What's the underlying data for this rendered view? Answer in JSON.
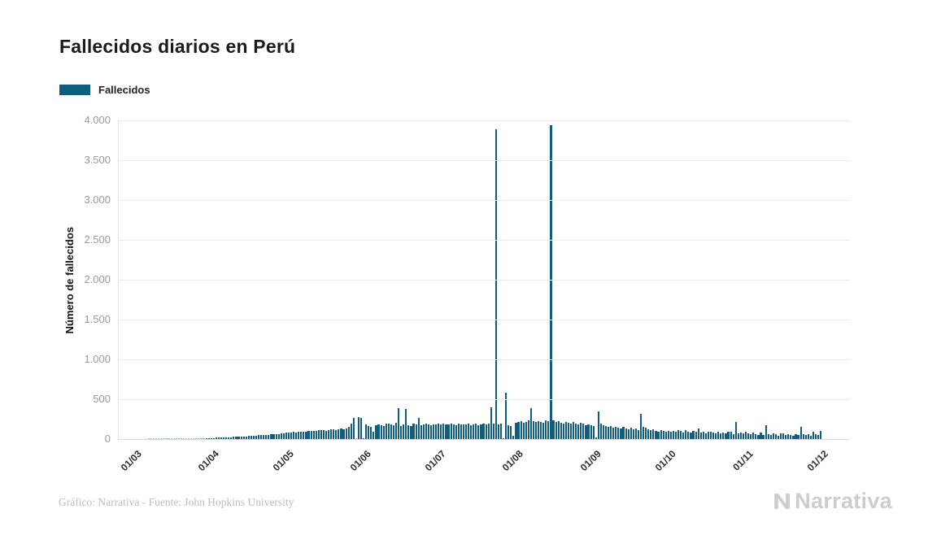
{
  "page": {
    "title": "Fallecidos diarios en Perú",
    "footer_credit": "Gráfico: Narrativa - Fuente: John Hopkins University",
    "brand": "Narrativa"
  },
  "legend": {
    "label": "Fallecidos"
  },
  "colors": {
    "bar": "#115d7e",
    "grid": "#ebebeb",
    "axis_tick_text": "#9b9b9b",
    "title_text": "#1b1b1b",
    "footer_text": "#bdbdbd",
    "brand_text": "#cdcdcd"
  },
  "chart_data": {
    "type": "bar",
    "title": "Fallecidos diarios en Perú",
    "xlabel": "",
    "ylabel": "Número de fallecidos",
    "ylim": [
      0,
      4000
    ],
    "ytick_step": 500,
    "ytick_labels": [
      "0",
      "500",
      "1.000",
      "1.500",
      "2.000",
      "2.500",
      "3.000",
      "3.500",
      "4.000"
    ],
    "grid": "horizontal",
    "legend_position": "top-left",
    "legend_entries": [
      "Fallecidos"
    ],
    "x_tick_labels": [
      "01/03",
      "01/04",
      "01/05",
      "01/06",
      "01/07",
      "01/08",
      "01/09",
      "01/10",
      "01/11",
      "01/12"
    ],
    "x_tick_day_offsets": [
      0,
      31,
      61,
      92,
      122,
      153,
      184,
      214,
      245,
      275
    ],
    "x_domain_days": 293,
    "x_domain_start_offset": 7,
    "notable_points": [
      {
        "x_label": "23/07",
        "value": 3887
      },
      {
        "x_label": "14/08",
        "value": 3935
      }
    ],
    "series": [
      {
        "name": "Fallecidos",
        "values": [
          0,
          0,
          0,
          0,
          0,
          1,
          1,
          1,
          1,
          1,
          1,
          1,
          1,
          1,
          2,
          2,
          2,
          2,
          2,
          3,
          4,
          5,
          5,
          7,
          8,
          9,
          9,
          10,
          11,
          12,
          14,
          15,
          16,
          17,
          18,
          20,
          22,
          24,
          25,
          27,
          28,
          30,
          32,
          33,
          35,
          37,
          40,
          42,
          44,
          46,
          48,
          50,
          53,
          56,
          58,
          60,
          63,
          66,
          70,
          74,
          78,
          82,
          85,
          88,
          84,
          90,
          94,
          96,
          92,
          98,
          102,
          105,
          100,
          108,
          112,
          110,
          106,
          115,
          118,
          121,
          116,
          124,
          128,
          125,
          131,
          150,
          190,
          265,
          10,
          275,
          270,
          15,
          180,
          160,
          150,
          90,
          170,
          185,
          175,
          165,
          190,
          195,
          180,
          170,
          200,
          390,
          160,
          185,
          380,
          175,
          165,
          195,
          185,
          270,
          175,
          180,
          190,
          185,
          175,
          180,
          185,
          190,
          185,
          190,
          180,
          188,
          195,
          182,
          178,
          192,
          186,
          180,
          188,
          194,
          176,
          184,
          190,
          178,
          186,
          192,
          183,
          189,
          395,
          190,
          3887,
          185,
          195,
          15,
          585,
          175,
          165,
          40,
          205,
          210,
          225,
          205,
          215,
          230,
          390,
          220,
          210,
          225,
          215,
          205,
          235,
          220,
          3935,
          230,
          215,
          225,
          205,
          195,
          215,
          200,
          190,
          210,
          195,
          185,
          200,
          190,
          175,
          185,
          170,
          160,
          20,
          345,
          190,
          175,
          160,
          150,
          165,
          145,
          155,
          140,
          130,
          150,
          135,
          125,
          140,
          120,
          130,
          115,
          320,
          150,
          140,
          125,
          110,
          120,
          105,
          95,
          110,
          100,
          90,
          105,
          95,
          105,
          88,
          112,
          98,
          85,
          108,
          92,
          78,
          102,
          96,
          130,
          85,
          92,
          70,
          88,
          95,
          80,
          75,
          90,
          68,
          85,
          72,
          95,
          88,
          60,
          210,
          75,
          82,
          68,
          90,
          72,
          58,
          85,
          62,
          48,
          78,
          55,
          170,
          65,
          52,
          70,
          58,
          45,
          68,
          75,
          50,
          62,
          55,
          40,
          58,
          48,
          150,
          65,
          52,
          58,
          45,
          88,
          60,
          52,
          105
        ]
      }
    ]
  }
}
